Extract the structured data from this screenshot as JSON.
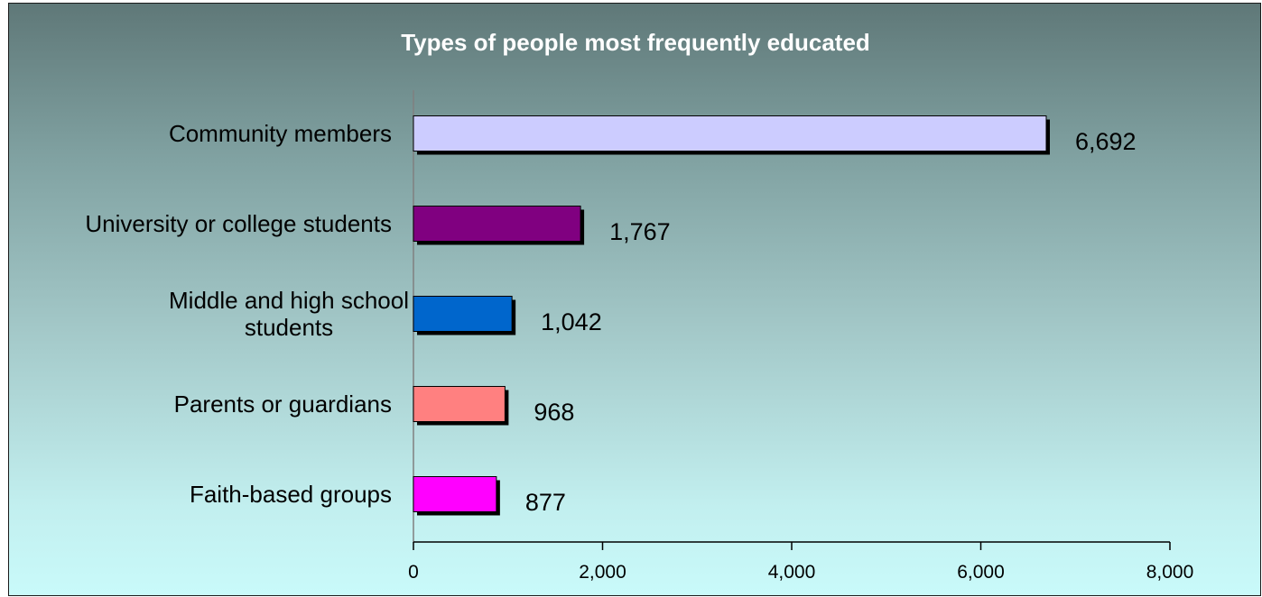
{
  "chart_data": {
    "type": "bar",
    "orientation": "horizontal",
    "title": "Types of people most frequently educated",
    "categories": [
      "Community members",
      "University or college students",
      "Middle and high school students",
      "Parents or guardians",
      "Faith-based groups"
    ],
    "category_label_lines": [
      [
        "Community members"
      ],
      [
        "University or college students"
      ],
      [
        "Middle and high school",
        "students"
      ],
      [
        "Parents or guardians"
      ],
      [
        "Faith-based groups"
      ]
    ],
    "values": [
      6692,
      1767,
      1042,
      968,
      877
    ],
    "value_labels": [
      "6,692",
      "1,767",
      "1,042",
      "968",
      "877"
    ],
    "colors": [
      "#ccccff",
      "#800080",
      "#0066cc",
      "#ff8080",
      "#ff00ff"
    ],
    "xlim": [
      0,
      8000
    ],
    "xticks": [
      0,
      2000,
      4000,
      6000,
      8000
    ],
    "xtick_labels": [
      "0",
      "2,000",
      "4,000",
      "6,000",
      "8,000"
    ],
    "xlabel": "",
    "ylabel": "",
    "grid": false,
    "legend": "none"
  }
}
